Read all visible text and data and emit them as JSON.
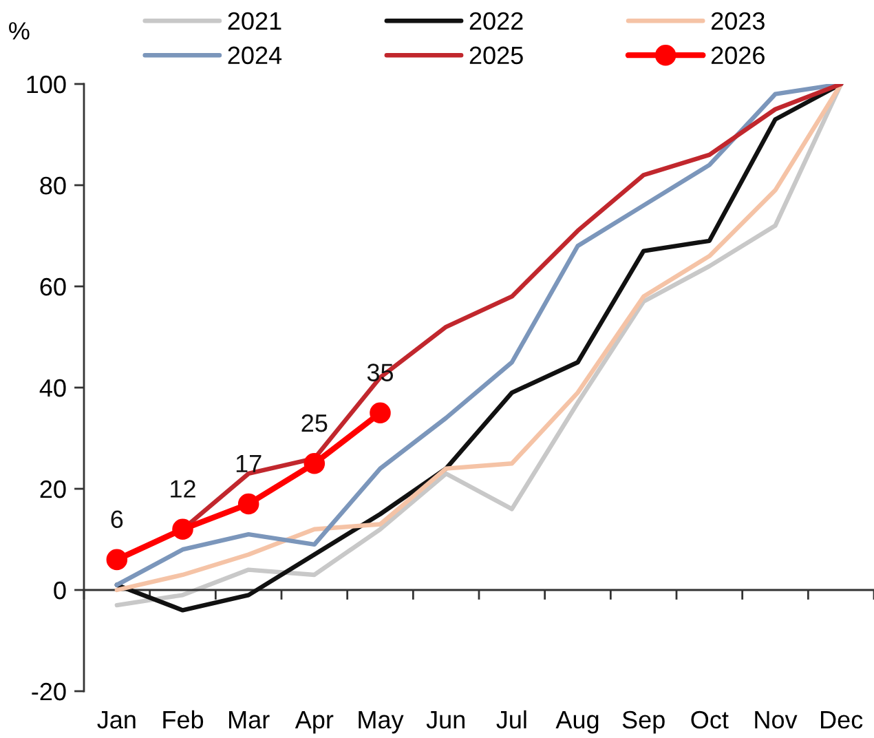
{
  "chart_data": {
    "type": "line",
    "ylabel": "%",
    "categories": [
      "Jan",
      "Feb",
      "Mar",
      "Apr",
      "May",
      "Jun",
      "Jul",
      "Aug",
      "Sep",
      "Oct",
      "Nov",
      "Dec"
    ],
    "ylim": [
      -20,
      100
    ],
    "yticks": [
      -20,
      0,
      20,
      40,
      60,
      80,
      100
    ],
    "legend": "top",
    "series": [
      {
        "name": "2021",
        "color": "#c8c8c8",
        "values": [
          -3,
          -1,
          4,
          3,
          12,
          23,
          16,
          37,
          57,
          64,
          72,
          100
        ]
      },
      {
        "name": "2022",
        "color": "#111111",
        "values": [
          1,
          -4,
          -1,
          7,
          15,
          24,
          39,
          45,
          67,
          69,
          93,
          100
        ]
      },
      {
        "name": "2023",
        "color": "#f5c3a6",
        "values": [
          0,
          3,
          7,
          12,
          13,
          24,
          25,
          39,
          58,
          66,
          79,
          100
        ]
      },
      {
        "name": "2024",
        "color": "#7b96bb",
        "values": [
          1,
          8,
          11,
          9,
          24,
          34,
          45,
          68,
          76,
          84,
          98,
          100
        ]
      },
      {
        "name": "2025",
        "color": "#c1272d",
        "values": [
          null,
          12,
          23,
          26,
          42,
          52,
          58,
          71,
          82,
          86,
          95,
          100
        ]
      },
      {
        "name": "2026",
        "color": "#ff0000",
        "marker": "circle",
        "values": [
          6,
          12,
          17,
          25,
          35,
          null,
          null,
          null,
          null,
          null,
          null,
          null
        ],
        "value_labels": [
          "6",
          "12",
          "17",
          "25",
          "35",
          null,
          null,
          null,
          null,
          null,
          null,
          null
        ]
      }
    ]
  }
}
